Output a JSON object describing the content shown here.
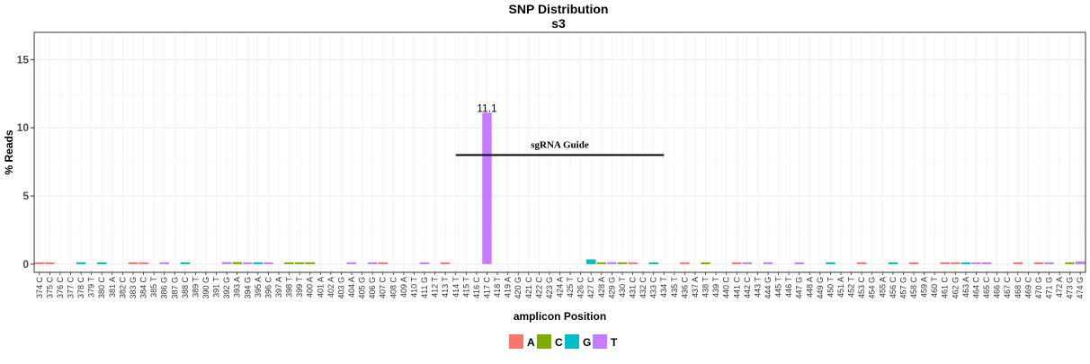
{
  "chart_data": {
    "type": "bar",
    "title": "SNP Distribution",
    "subtitle": "s3",
    "xlabel": "amplicon Position",
    "ylabel": "% Reads",
    "ylim": [
      -0.6,
      17
    ],
    "yticks": [
      0,
      5,
      10,
      15
    ],
    "grid": true,
    "legend_position": "bottom",
    "positions": [
      "374 C",
      "375 C",
      "376 C",
      "377 C",
      "378 C",
      "379 T",
      "380 C",
      "381 A",
      "382 C",
      "383 G",
      "384 C",
      "385 T",
      "386 G",
      "387 G",
      "388 C",
      "389 T",
      "390 G",
      "391 T",
      "392 G",
      "393 A",
      "394 G",
      "395 A",
      "396 C",
      "397 A",
      "398 T",
      "399 T",
      "400 A",
      "401 A",
      "402 A",
      "403 G",
      "404 A",
      "405 G",
      "406 G",
      "407 C",
      "408 C",
      "409 A",
      "410 T",
      "411 G",
      "412 T",
      "413 T",
      "414 T",
      "415 T",
      "416 C",
      "417 C",
      "418 T",
      "419 A",
      "420 G",
      "421 C",
      "422 C",
      "423 G",
      "424 A",
      "425 T",
      "426 C",
      "427 C",
      "428 A",
      "429 G",
      "430 T",
      "431 C",
      "432 C",
      "433 C",
      "434 T",
      "435 T",
      "436 C",
      "437 A",
      "438 T",
      "439 T",
      "440 C",
      "441 C",
      "442 C",
      "443 T",
      "444 G",
      "445 T",
      "446 T",
      "447 G",
      "448 A",
      "449 G",
      "450 T",
      "451 A",
      "452 T",
      "453 C",
      "454 G",
      "455 A",
      "456 C",
      "457 G",
      "458 C",
      "459 A",
      "460 T",
      "461 C",
      "462 G",
      "463 A",
      "464 C",
      "465 C",
      "466 C",
      "467 C",
      "468 C",
      "469 C",
      "470 G",
      "471 G",
      "472 A",
      "473 G",
      "474 G"
    ],
    "series": [
      {
        "name": "A",
        "color": "#F8766D",
        "points": [
          {
            "pos": "374 C",
            "value": 0.05
          },
          {
            "pos": "375 C",
            "value": 0.05
          },
          {
            "pos": "383 G",
            "value": 0.05
          },
          {
            "pos": "384 C",
            "value": 0.05
          },
          {
            "pos": "407 C",
            "value": 0.1
          },
          {
            "pos": "413 T",
            "value": 0.05
          },
          {
            "pos": "431 C",
            "value": 0.05
          },
          {
            "pos": "436 C",
            "value": 0.1
          },
          {
            "pos": "441 C",
            "value": 0.05
          },
          {
            "pos": "453 C",
            "value": 0.05
          },
          {
            "pos": "458 C",
            "value": 0.05
          },
          {
            "pos": "461 C",
            "value": 0.05
          },
          {
            "pos": "462 G",
            "value": 0.05
          },
          {
            "pos": "468 C",
            "value": 0.05
          },
          {
            "pos": "470 G",
            "value": 0.05
          }
        ]
      },
      {
        "name": "C",
        "color": "#7CAE00",
        "points": [
          {
            "pos": "393 A",
            "value": 0.15
          },
          {
            "pos": "398 T",
            "value": 0.1
          },
          {
            "pos": "399 T",
            "value": 0.1
          },
          {
            "pos": "400 A",
            "value": 0.1
          },
          {
            "pos": "428 A",
            "value": 0.1
          },
          {
            "pos": "430 T",
            "value": 0.05
          },
          {
            "pos": "438 T",
            "value": 0.05
          },
          {
            "pos": "473 G",
            "value": 0.05
          }
        ]
      },
      {
        "name": "G",
        "color": "#00BFC4",
        "points": [
          {
            "pos": "378 C",
            "value": 0.05
          },
          {
            "pos": "380 C",
            "value": 0.05
          },
          {
            "pos": "388 C",
            "value": 0.1
          },
          {
            "pos": "395 A",
            "value": 0.05
          },
          {
            "pos": "427 C",
            "value": 0.35
          },
          {
            "pos": "433 C",
            "value": 0.1
          },
          {
            "pos": "450 T",
            "value": 0.1
          },
          {
            "pos": "456 C",
            "value": 0.05
          },
          {
            "pos": "463 A",
            "value": 0.05
          }
        ]
      },
      {
        "name": "T",
        "color": "#C77CFF",
        "points": [
          {
            "pos": "386 G",
            "value": 0.05
          },
          {
            "pos": "392 G",
            "value": 0.15
          },
          {
            "pos": "394 G",
            "value": 0.05
          },
          {
            "pos": "396 C",
            "value": 0.1
          },
          {
            "pos": "404 A",
            "value": 0.05
          },
          {
            "pos": "406 G",
            "value": 0.05
          },
          {
            "pos": "411 G",
            "value": 0.05
          },
          {
            "pos": "417 C",
            "value": 11.1
          },
          {
            "pos": "429 G",
            "value": 0.15
          },
          {
            "pos": "442 C",
            "value": 0.05
          },
          {
            "pos": "444 G",
            "value": 0.05
          },
          {
            "pos": "447 G",
            "value": 0.05
          },
          {
            "pos": "464 C",
            "value": 0.05
          },
          {
            "pos": "465 C",
            "value": 0.05
          },
          {
            "pos": "471 G",
            "value": 0.1
          },
          {
            "pos": "474 G",
            "value": 0.2
          }
        ]
      }
    ],
    "value_labels": [
      {
        "pos": "417 C",
        "text": "11.1",
        "value": 11.1
      }
    ],
    "annotations": [
      {
        "text": "sgRNA Guide",
        "x_start": "414 T",
        "x_end": "434 T",
        "y": 8
      }
    ]
  }
}
